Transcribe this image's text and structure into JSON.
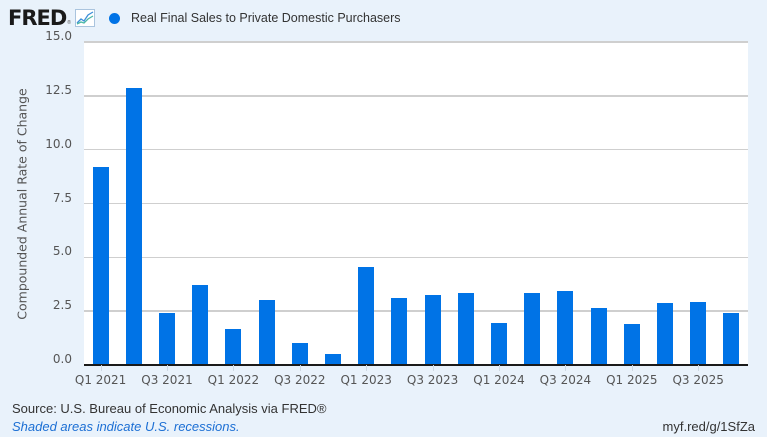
{
  "header": {
    "logo_text": "FRED",
    "logo_reg": "®",
    "logo_icon": "line-chart-icon",
    "legend_label": "Real Final Sales to Private Domestic Purchasers",
    "legend_color": "#0073e6"
  },
  "footer": {
    "source": "Source: U.S. Bureau of Economic Analysis via FRED®",
    "note": "Shaded areas indicate U.S. recessions.",
    "link": "myf.red/g/1SfZa"
  },
  "chart_data": {
    "type": "bar",
    "title": "",
    "legend": [
      "Real Final Sales to Private Domestic Purchasers"
    ],
    "legend_position": "top-left",
    "xlabel": "",
    "ylabel": "Compounded Annual Rate of Change",
    "ylim": [
      0,
      15
    ],
    "yticks": [
      "0.0",
      "2.5",
      "5.0",
      "7.5",
      "10.0",
      "12.5",
      "15.0"
    ],
    "grid": true,
    "bar_color": "#0073e6",
    "categories": [
      "Q1 2021",
      "Q2 2021",
      "Q3 2021",
      "Q4 2021",
      "Q1 2022",
      "Q2 2022",
      "Q3 2022",
      "Q4 2022",
      "Q1 2023",
      "Q2 2023",
      "Q3 2023",
      "Q4 2023",
      "Q1 2024",
      "Q2 2024",
      "Q3 2024",
      "Q4 2024",
      "Q1 2025",
      "Q2 2025",
      "Q3 2025",
      "Q4 2025"
    ],
    "xtick_labels": [
      "Q1 2021",
      "Q3 2021",
      "Q1 2022",
      "Q3 2022",
      "Q1 2023",
      "Q3 2023",
      "Q1 2024",
      "Q3 2024",
      "Q1 2025",
      "Q3 2025"
    ],
    "values": [
      9.15,
      12.8,
      2.37,
      3.67,
      1.63,
      2.97,
      0.98,
      0.47,
      4.5,
      3.07,
      3.2,
      3.3,
      1.9,
      3.3,
      3.4,
      2.6,
      1.86,
      2.83,
      2.88,
      2.37
    ]
  }
}
